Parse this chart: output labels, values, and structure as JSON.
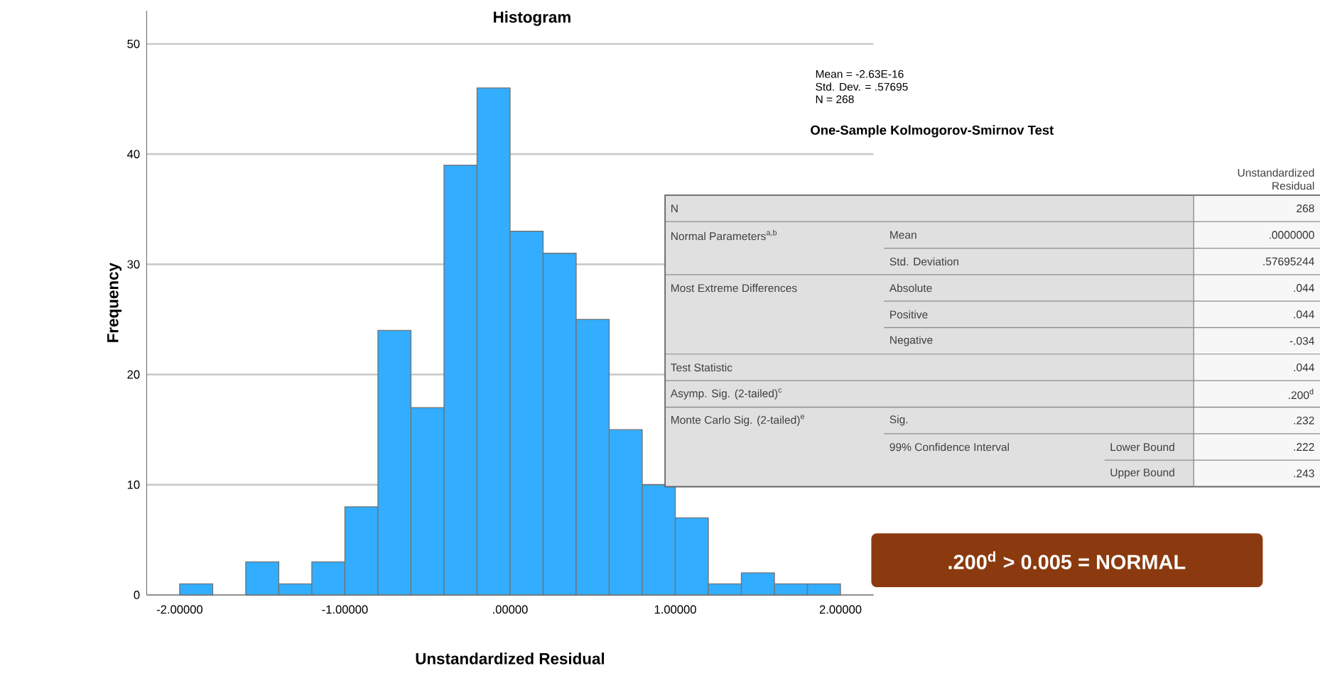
{
  "chart_data": {
    "type": "histogram",
    "title": "Histogram",
    "xlabel": "Unstandardized Residual",
    "ylabel": "Frequency",
    "bins": [
      -2.0,
      -1.8,
      -1.6,
      -1.4,
      -1.2,
      -1.0,
      -0.8,
      -0.6,
      -0.4,
      -0.2,
      0.0,
      0.2,
      0.4,
      0.6,
      0.8,
      1.0,
      1.2,
      1.4,
      1.6,
      1.8,
      2.0
    ],
    "values": [
      1,
      0,
      3,
      1,
      3,
      8,
      24,
      17,
      39,
      46,
      33,
      31,
      25,
      15,
      10,
      7,
      1,
      2,
      1,
      1
    ],
    "color": "#33adff",
    "xlim": [
      -2.2,
      2.2
    ],
    "ylim": [
      0,
      53
    ],
    "xticks": [
      {
        "value": -2,
        "label": "-2.00000"
      },
      {
        "value": -1,
        "label": "-1.00000"
      },
      {
        "value": 0,
        "label": ".00000"
      },
      {
        "value": 1,
        "label": "1.00000"
      },
      {
        "value": 2,
        "label": "2.00000"
      }
    ],
    "yticks": [
      0,
      10,
      20,
      30,
      40,
      50
    ],
    "grid": "y",
    "annotations": [
      "Mean = -2.63E-16",
      "Std. Dev. = .57695",
      "N = 268",
      "One-Sample Kolmogorov-Smirnov Test",
      "Unstandardized Residual",
      "N",
      "268",
      "Normal Parameters$^{a,b}$",
      "Mean",
      ".0000000",
      "Std. Deviation",
      ".57695244",
      "Most Extreme Differences",
      "Absolute",
      ".044",
      "Positive",
      ".044",
      "Negative",
      "-.034",
      "Test Statistic",
      ".044",
      "Asymp. Sig. (2-tailed)$^{c}$",
      ".200$^{d}$",
      "Monte Carlo Sig. (2-tailed)$^{e}$",
      "Sig.",
      ".232",
      "99% Confidence Interval",
      "Lower Bound",
      ".222",
      "Upper Bound",
      ".243",
      ".200$^{d}$  > 0.005 = NORMAL"
    ]
  }
}
